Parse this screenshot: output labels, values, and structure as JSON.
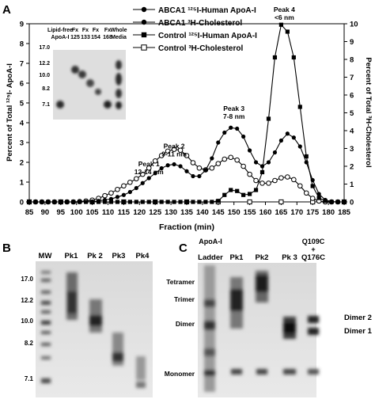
{
  "panel_labels": {
    "a": "A",
    "b": "B",
    "c": "C"
  },
  "chart_data": {
    "type": "line",
    "xlabel": "Fraction (min)",
    "ylabel_left": "Percent of Total ¹²⁵I- ApoA-I",
    "ylabel_right": "Percent of Total ³H-Cholesterol",
    "xlim": [
      85,
      185
    ],
    "ylim_left": [
      0,
      9
    ],
    "ylim_right": [
      0,
      10
    ],
    "x_ticks": [
      85,
      90,
      95,
      100,
      105,
      110,
      115,
      120,
      125,
      130,
      135,
      140,
      145,
      150,
      155,
      160,
      165,
      170,
      175,
      180,
      185
    ],
    "y_ticks_left": [
      0,
      1,
      2,
      3,
      4,
      5,
      6,
      7,
      8,
      9
    ],
    "y_ticks_right": [
      0,
      1,
      2,
      3,
      4,
      5,
      6,
      7,
      8,
      9,
      10
    ],
    "legend_position": "top-right",
    "series": [
      {
        "name": "ABCA1 ¹²⁵I-Human ApoA-I",
        "axis": "left",
        "marker": "filled-circle",
        "x": [
          85,
          87,
          89,
          91,
          93,
          95,
          97,
          99,
          101,
          103,
          105,
          107,
          109,
          111,
          113,
          115,
          117,
          119,
          121,
          123,
          125,
          127,
          129,
          131,
          133,
          135,
          137,
          139,
          141,
          143,
          145,
          147,
          149,
          151,
          153,
          155,
          157,
          159,
          161,
          163,
          165,
          167,
          169,
          171,
          173,
          175,
          177,
          179,
          181,
          183,
          185
        ],
        "y": [
          0,
          0,
          0,
          0,
          0,
          0,
          0,
          0,
          0,
          0,
          0.02,
          0.05,
          0.1,
          0.15,
          0.25,
          0.35,
          0.5,
          0.7,
          0.95,
          1.2,
          1.45,
          1.7,
          1.85,
          1.9,
          1.8,
          1.55,
          1.3,
          1.3,
          1.6,
          2.2,
          3.0,
          3.5,
          3.75,
          3.7,
          3.3,
          2.6,
          2.0,
          1.8,
          2.0,
          2.5,
          3.1,
          3.45,
          3.25,
          2.8,
          2.0,
          1.1,
          0.4,
          0.1,
          0.02,
          0,
          0
        ]
      },
      {
        "name": "ABCA1 ³H-Cholesterol",
        "axis": "right",
        "marker": "open-circle",
        "x": [
          85,
          87,
          89,
          91,
          93,
          95,
          97,
          99,
          101,
          103,
          105,
          107,
          109,
          111,
          113,
          115,
          117,
          119,
          121,
          123,
          125,
          127,
          129,
          131,
          133,
          135,
          137,
          139,
          141,
          143,
          145,
          147,
          149,
          151,
          153,
          155,
          157,
          159,
          161,
          163,
          165,
          167,
          169,
          171,
          173,
          175,
          177,
          179,
          181,
          183,
          185
        ],
        "y": [
          0,
          0,
          0,
          0,
          0,
          0,
          0,
          0,
          0.02,
          0.05,
          0.1,
          0.2,
          0.35,
          0.5,
          0.7,
          0.9,
          1.1,
          1.3,
          1.55,
          1.9,
          2.3,
          2.6,
          2.85,
          2.95,
          2.9,
          2.6,
          2.2,
          1.9,
          1.8,
          1.9,
          2.15,
          2.4,
          2.5,
          2.35,
          2.0,
          1.55,
          1.2,
          1.05,
          1.05,
          1.2,
          1.35,
          1.4,
          1.25,
          0.9,
          0.5,
          0.2,
          0.05,
          0,
          0,
          0,
          0
        ]
      },
      {
        "name": "Control ¹²⁵I-Human ApoA-I",
        "axis": "left",
        "marker": "filled-square",
        "x": [
          85,
          87,
          89,
          91,
          93,
          95,
          97,
          99,
          101,
          103,
          105,
          107,
          109,
          111,
          113,
          115,
          117,
          119,
          121,
          123,
          125,
          127,
          129,
          131,
          133,
          135,
          137,
          139,
          141,
          143,
          145,
          147,
          149,
          151,
          153,
          155,
          157,
          159,
          161,
          163,
          165,
          167,
          169,
          171,
          173,
          175,
          177,
          179,
          181,
          183,
          185
        ],
        "y": [
          0,
          0,
          0,
          0,
          0,
          0,
          0,
          0,
          0,
          0,
          0,
          0,
          0,
          0,
          0,
          0,
          0,
          0,
          0,
          0,
          0,
          0,
          0,
          0,
          0,
          0,
          0,
          0,
          0,
          0,
          0.05,
          0.35,
          0.6,
          0.55,
          0.35,
          0.4,
          0.6,
          1.5,
          4.2,
          7.3,
          8.95,
          8.6,
          7.3,
          4.8,
          2.3,
          0.8,
          0.2,
          0.05,
          0,
          0,
          0
        ]
      },
      {
        "name": "Control ³H-Cholesterol",
        "axis": "right",
        "marker": "open-square",
        "x": [
          85,
          95,
          105,
          115,
          125,
          135,
          145,
          155,
          165,
          175,
          185
        ],
        "y": [
          0,
          0,
          0,
          0,
          0,
          0,
          0,
          0,
          0,
          0,
          0
        ]
      }
    ],
    "annotations": [
      {
        "lines": [
          "Peak 1",
          "12-14 nm"
        ],
        "x": 123,
        "y": 1.4
      },
      {
        "lines": [
          "Peak 2",
          "9-11 nm"
        ],
        "x": 131,
        "y": 2.3
      },
      {
        "lines": [
          "Peak 3",
          "7-8 nm"
        ],
        "x": 150,
        "y": 4.2
      },
      {
        "lines": [
          "Peak 4",
          "<6 nm"
        ],
        "x": 166,
        "y": 9.2
      }
    ]
  },
  "inset_gel": {
    "lanes": [
      "Lipid-free ApoA-I",
      "Fx 125",
      "Fx 133",
      "Fx 154",
      "Fx 168",
      "Whole Media"
    ],
    "lane_labels_top": [
      "Lipid-free",
      "Fx",
      "Fx",
      "Fx",
      "Fx",
      "Whole"
    ],
    "lane_labels_bottom": [
      "ApoA-I",
      "125",
      "133",
      "154",
      "168",
      "Media"
    ],
    "markers": [
      "17.0",
      "12.2",
      "10.0",
      "8.2",
      "7.1"
    ]
  },
  "gel_b": {
    "lanes": [
      "MW",
      "Pk1",
      "Pk 2",
      "Pk3",
      "Pk4"
    ],
    "markers": [
      "17.0",
      "12.2",
      "10.0",
      "8.2",
      "7.1"
    ]
  },
  "gel_c": {
    "lanes_top": [
      "ApoA-I",
      "",
      "",
      "",
      "Q109C"
    ],
    "lanes_mid": [
      "",
      "",
      "",
      "",
      "+"
    ],
    "lanes_bottom": [
      "Ladder",
      "Pk1",
      "Pk2",
      "Pk 3",
      "Q176C"
    ],
    "left_labels": [
      "Tetramer",
      "Trimer",
      "Dimer",
      "Monomer"
    ],
    "right_labels": [
      "Dimer 2",
      "Dimer 1"
    ]
  }
}
